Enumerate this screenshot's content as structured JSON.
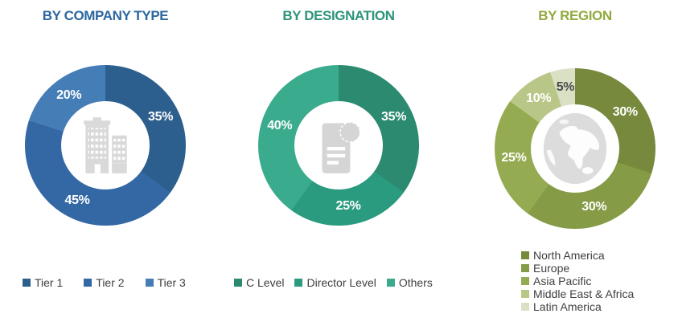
{
  "chart_data": [
    {
      "type": "donut",
      "title": "BY COMPANY TYPE",
      "title_color": "#2B679F",
      "center_icon": "buildings-icon",
      "legend_position": "bottom-horizontal",
      "start_angle_deg": 0,
      "direction": "clockwise",
      "segments": [
        {
          "label": "Tier 1",
          "value": 35,
          "display": "35%",
          "color": "#2D5F8E",
          "label_color": "#FFFFFF"
        },
        {
          "label": "Tier 2",
          "value": 45,
          "display": "45%",
          "color": "#3368A4",
          "label_color": "#FFFFFF"
        },
        {
          "label": "Tier 3",
          "value": 20,
          "display": "20%",
          "color": "#457DB6",
          "label_color": "#FFFFFF"
        }
      ]
    },
    {
      "type": "donut",
      "title": "BY DESIGNATION",
      "title_color": "#2D9479",
      "center_icon": "report-icon",
      "legend_position": "bottom-horizontal",
      "start_angle_deg": 0,
      "direction": "clockwise",
      "segments": [
        {
          "label": "C Level",
          "value": 35,
          "display": "35%",
          "color": "#2B8A70",
          "label_color": "#FFFFFF"
        },
        {
          "label": "Director Level",
          "value": 25,
          "display": "25%",
          "color": "#2B9B80",
          "label_color": "#FFFFFF"
        },
        {
          "label": "Others",
          "value": 40,
          "display": "40%",
          "color": "#3AAB8D",
          "label_color": "#FFFFFF"
        }
      ]
    },
    {
      "type": "donut",
      "title": "BY REGION",
      "title_color": "#92A93F",
      "center_icon": "globe-icon",
      "legend_position": "bottom-vertical",
      "start_angle_deg": 0,
      "direction": "clockwise",
      "segments": [
        {
          "label": "North America",
          "value": 30,
          "display": "30%",
          "color": "#76893C",
          "label_color": "#FFFFFF"
        },
        {
          "label": "Europe",
          "value": 30,
          "display": "30%",
          "color": "#859B46",
          "label_color": "#FFFFFF"
        },
        {
          "label": "Asia Pacific",
          "value": 25,
          "display": "25%",
          "color": "#94AB51",
          "label_color": "#FFFFFF"
        },
        {
          "label": "Middle East & Africa",
          "value": 10,
          "display": "10%",
          "color": "#B8C787",
          "label_color": "#FFFFFF"
        },
        {
          "label": "Latin America",
          "value": 5,
          "display": "5%",
          "color": "#DAE0C3",
          "label_color": "#4A4A4A"
        }
      ]
    }
  ]
}
